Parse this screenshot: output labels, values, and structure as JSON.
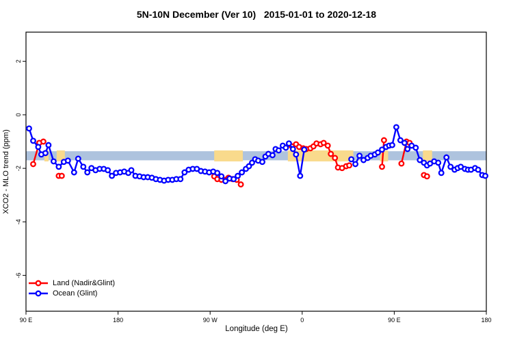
{
  "chart_data": {
    "type": "line",
    "title": "5N-10N December (Ver 10)   2015-01-01 to 2020-12-18",
    "xlabel": "Longitude (deg E)",
    "ylabel": "XCO2 - MLO trend (ppm)",
    "xlim": [
      90,
      540
    ],
    "ylim": [
      -7.34,
      3.09
    ],
    "grid": "off",
    "legend_position": "bottom-left",
    "x_ticks": {
      "values": [
        90,
        180,
        270,
        360,
        450,
        540
      ],
      "labels": [
        "90 E",
        "180",
        "90 W",
        "0",
        "90 E",
        "180"
      ]
    },
    "y_ticks": {
      "values": [
        2,
        0,
        -2,
        -4,
        -6
      ],
      "labels": [
        "2",
        "0",
        "-2",
        "-4",
        "-6"
      ]
    },
    "reference_band": {
      "color": "#aec3de",
      "y_top": -1.36,
      "y_bottom": -1.7,
      "x_from": 90,
      "x_to": 540
    },
    "land_band": {
      "color": "#f9da8c",
      "y_top": -1.33,
      "y_bottom": -1.74,
      "segments": [
        [
          108,
          112
        ],
        [
          120,
          128
        ],
        [
          274,
          302
        ],
        [
          346,
          410
        ],
        [
          436,
          444
        ],
        [
          478,
          487
        ]
      ]
    },
    "series": [
      {
        "name": "Land (Nadir&Glint)",
        "color": "#ff0000",
        "marker": "open-circle",
        "segments": [
          [
            [
              97,
              -1.84
            ],
            [
              103,
              -1.05
            ],
            [
              107,
              -1.0
            ]
          ],
          [
            [
              122,
              -2.28
            ],
            [
              125,
              -2.28
            ]
          ],
          [
            [
              274,
              -2.3
            ],
            [
              277,
              -2.4
            ],
            [
              281,
              -2.43
            ],
            [
              285,
              -2.43
            ],
            [
              288,
              -2.35
            ],
            [
              292,
              -2.4
            ],
            [
              296,
              -2.43
            ],
            [
              300,
              -2.6
            ]
          ],
          [
            [
              347,
              -1.1
            ],
            [
              350,
              -1.18
            ],
            [
              354,
              -1.1
            ],
            [
              357,
              -1.2
            ],
            [
              361,
              -1.25
            ],
            [
              364,
              -1.28
            ],
            [
              368,
              -1.25
            ],
            [
              371,
              -1.18
            ],
            [
              374,
              -1.07
            ],
            [
              378,
              -1.1
            ],
            [
              381,
              -1.05
            ],
            [
              385,
              -1.15
            ],
            [
              388,
              -1.46
            ],
            [
              392,
              -1.61
            ],
            [
              395,
              -1.97
            ],
            [
              399,
              -1.99
            ],
            [
              403,
              -1.92
            ],
            [
              406,
              -1.89
            ]
          ],
          [
            [
              438,
              -1.94
            ],
            [
              440,
              -0.95
            ]
          ],
          [
            [
              457,
              -1.82
            ],
            [
              462,
              -1.0
            ],
            [
              465,
              -1.05
            ]
          ],
          [
            [
              479,
              -2.25
            ],
            [
              482,
              -2.3
            ]
          ]
        ]
      },
      {
        "name": "Ocean (Glint)",
        "color": "#0000ff",
        "marker": "open-circle",
        "segments": [
          [
            [
              93,
              -0.51
            ],
            [
              97,
              -0.97
            ],
            [
              102,
              -1.2
            ],
            [
              105,
              -1.48
            ],
            [
              109,
              -1.43
            ],
            [
              112,
              -1.13
            ],
            [
              117,
              -1.74
            ],
            [
              122,
              -1.94
            ],
            [
              127,
              -1.76
            ],
            [
              131,
              -1.71
            ],
            [
              137,
              -2.15
            ],
            [
              141,
              -1.64
            ],
            [
              146,
              -1.94
            ],
            [
              150,
              -2.15
            ],
            [
              154,
              -1.99
            ],
            [
              158,
              -2.07
            ],
            [
              162,
              -2.02
            ],
            [
              166,
              -2.02
            ],
            [
              170,
              -2.07
            ],
            [
              174,
              -2.28
            ],
            [
              178,
              -2.17
            ],
            [
              182,
              -2.15
            ],
            [
              186,
              -2.12
            ],
            [
              190,
              -2.17
            ],
            [
              193,
              -2.07
            ],
            [
              197,
              -2.28
            ],
            [
              201,
              -2.3
            ],
            [
              205,
              -2.33
            ],
            [
              209,
              -2.33
            ],
            [
              213,
              -2.35
            ],
            [
              217,
              -2.4
            ],
            [
              221,
              -2.43
            ],
            [
              225,
              -2.46
            ],
            [
              229,
              -2.43
            ],
            [
              233,
              -2.43
            ],
            [
              237,
              -2.4
            ],
            [
              241,
              -2.4
            ],
            [
              245,
              -2.15
            ],
            [
              249,
              -2.05
            ],
            [
              253,
              -2.02
            ],
            [
              257,
              -2.02
            ],
            [
              261,
              -2.1
            ],
            [
              265,
              -2.12
            ],
            [
              269,
              -2.15
            ],
            [
              273,
              -2.12
            ],
            [
              277,
              -2.17
            ],
            [
              281,
              -2.3
            ],
            [
              285,
              -2.48
            ],
            [
              289,
              -2.38
            ],
            [
              293,
              -2.4
            ],
            [
              297,
              -2.28
            ],
            [
              301,
              -2.15
            ],
            [
              305,
              -2.02
            ],
            [
              308,
              -1.92
            ],
            [
              311,
              -1.79
            ],
            [
              314,
              -1.66
            ],
            [
              317,
              -1.71
            ],
            [
              321,
              -1.76
            ],
            [
              324,
              -1.56
            ],
            [
              327,
              -1.46
            ],
            [
              331,
              -1.51
            ],
            [
              334,
              -1.28
            ],
            [
              337,
              -1.33
            ],
            [
              341,
              -1.15
            ],
            [
              344,
              -1.23
            ],
            [
              347,
              -1.07
            ],
            [
              351,
              -1.28
            ],
            [
              354,
              -1.48
            ],
            [
              358,
              -2.28
            ],
            [
              362,
              -1.3
            ]
          ],
          [
            [
              408,
              -1.66
            ],
            [
              412,
              -1.84
            ],
            [
              416,
              -1.53
            ],
            [
              420,
              -1.69
            ],
            [
              424,
              -1.61
            ],
            [
              427,
              -1.53
            ],
            [
              431,
              -1.48
            ],
            [
              434,
              -1.41
            ],
            [
              438,
              -1.3
            ],
            [
              442,
              -1.2
            ],
            [
              445,
              -1.15
            ],
            [
              448,
              -1.13
            ],
            [
              452,
              -0.46
            ],
            [
              456,
              -0.95
            ],
            [
              460,
              -1.05
            ],
            [
              463,
              -1.28
            ],
            [
              467,
              -1.15
            ],
            [
              471,
              -1.23
            ],
            [
              475,
              -1.69
            ],
            [
              479,
              -1.79
            ],
            [
              482,
              -1.89
            ],
            [
              485,
              -1.82
            ],
            [
              489,
              -1.74
            ],
            [
              493,
              -1.79
            ],
            [
              496,
              -2.17
            ],
            [
              501,
              -1.59
            ],
            [
              505,
              -1.94
            ],
            [
              509,
              -2.05
            ],
            [
              512,
              -1.99
            ],
            [
              515,
              -1.94
            ],
            [
              519,
              -2.02
            ],
            [
              522,
              -2.05
            ],
            [
              525,
              -2.05
            ],
            [
              529,
              -1.99
            ],
            [
              532,
              -2.05
            ],
            [
              536,
              -2.25
            ],
            [
              539,
              -2.28
            ]
          ]
        ]
      }
    ]
  }
}
